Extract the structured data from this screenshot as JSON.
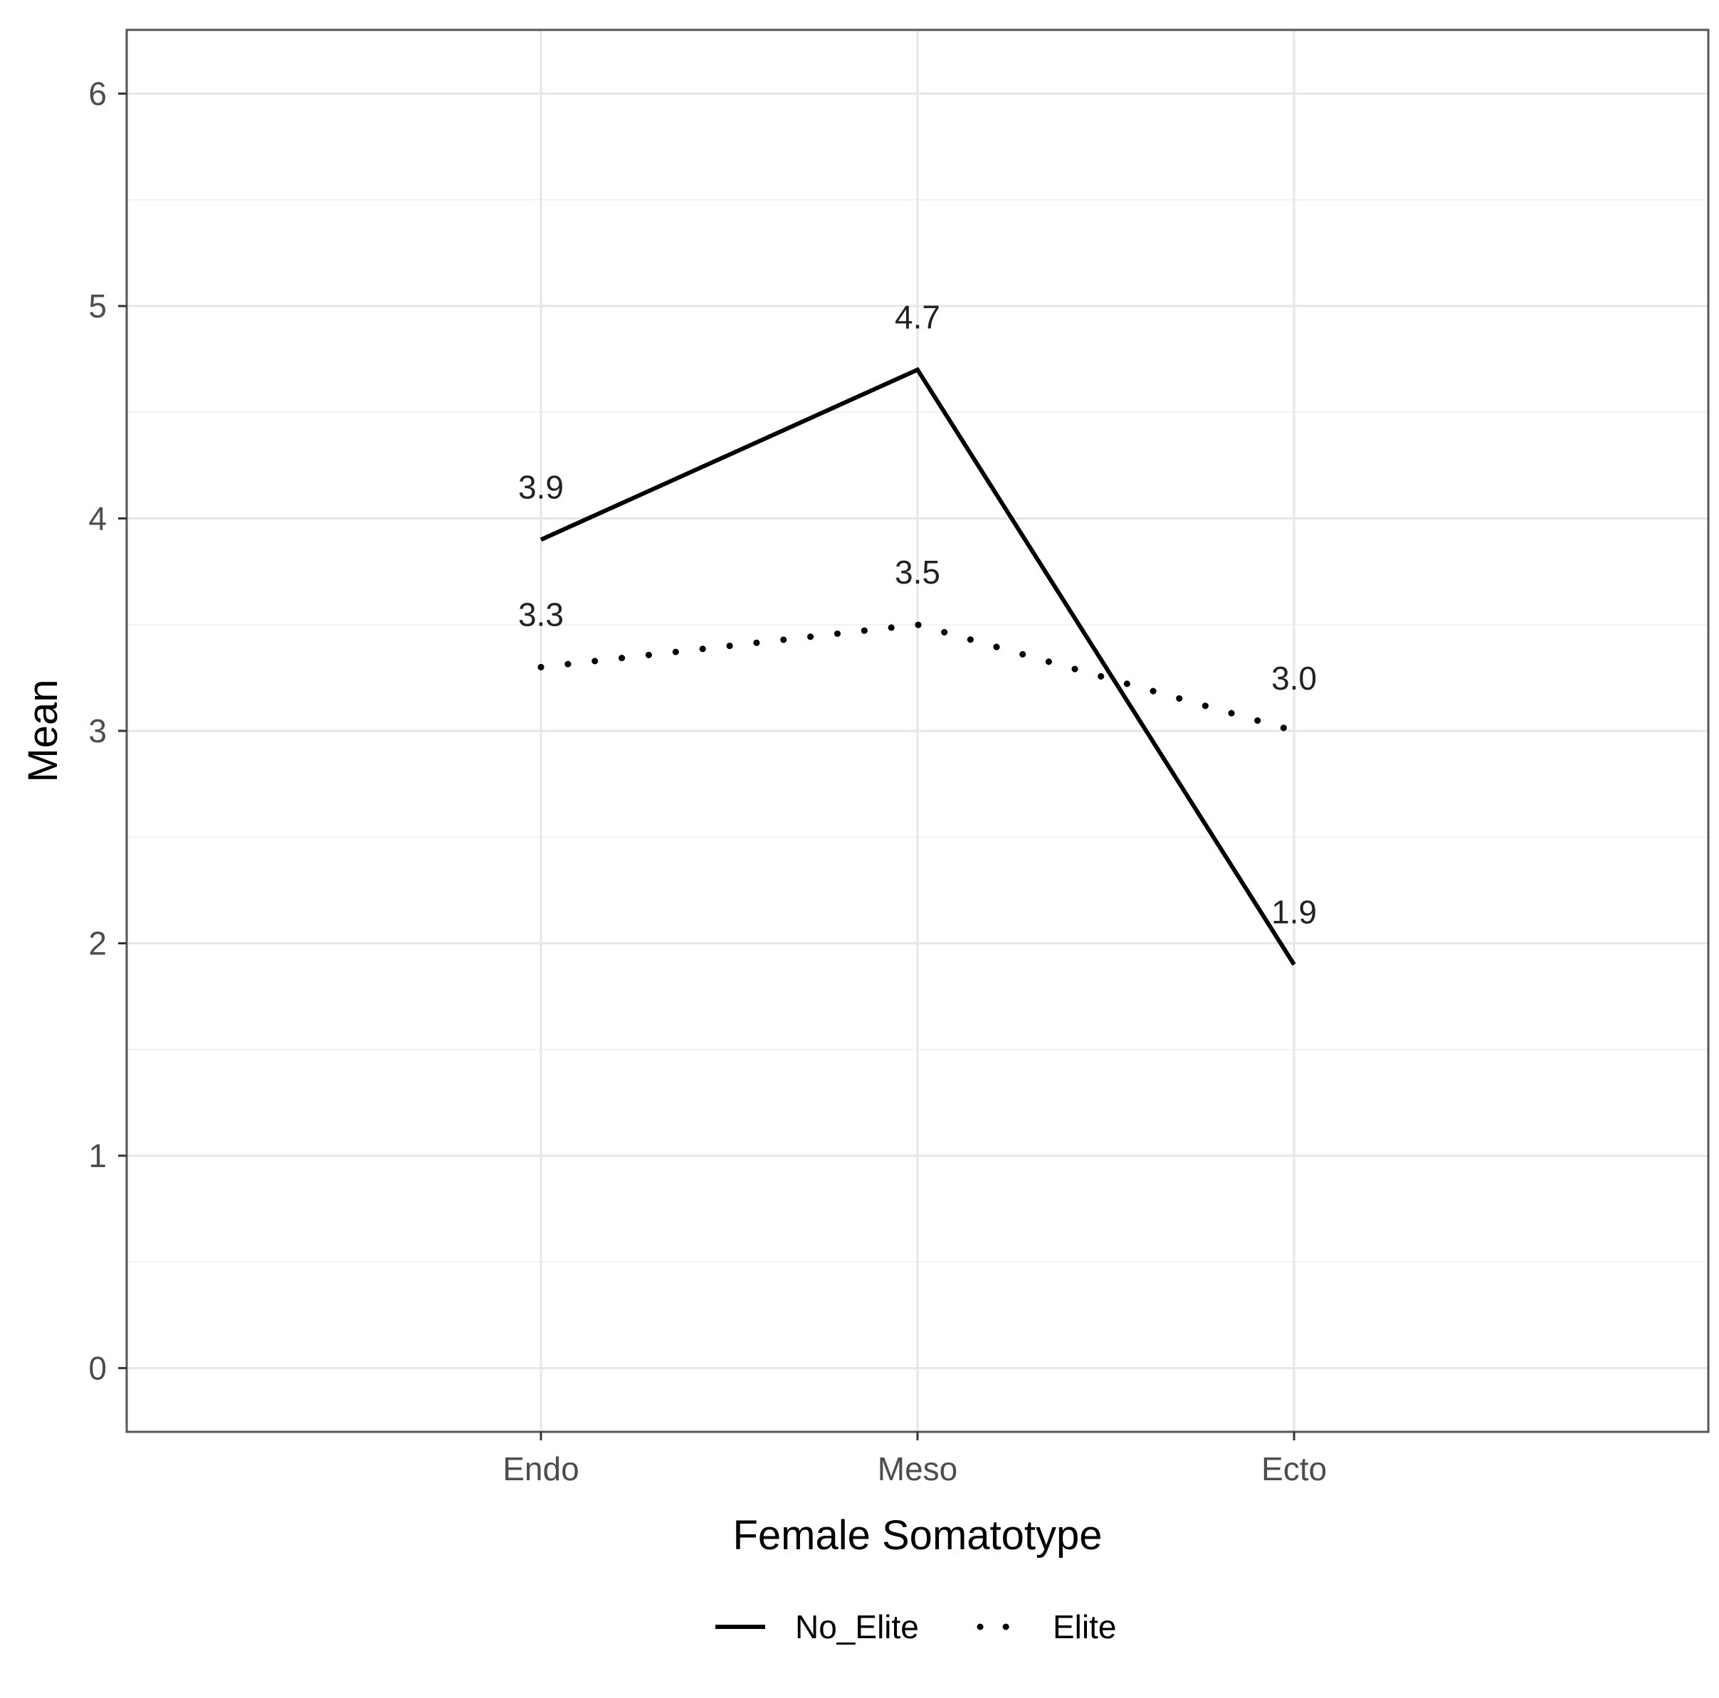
{
  "chart_data": {
    "type": "line",
    "categories": [
      "Endo",
      "Meso",
      "Ecto"
    ],
    "series": [
      {
        "name": "No_Elite",
        "values": [
          3.9,
          4.7,
          1.9
        ],
        "linestyle": "solid",
        "color": "#000000",
        "labels": [
          "3.9",
          "4.7",
          "1.9"
        ]
      },
      {
        "name": "Elite",
        "values": [
          3.3,
          3.5,
          3.0
        ],
        "linestyle": "dotted",
        "color": "#000000",
        "labels": [
          "3.3",
          "3.5",
          "3.0"
        ]
      }
    ],
    "xlabel": "Female Somatotype",
    "ylabel": "Mean",
    "ylim": [
      -0.3,
      6.3
    ],
    "yticks": [
      0,
      1,
      2,
      3,
      4,
      5,
      6
    ],
    "ytick_labels": [
      "0",
      "1",
      "2",
      "3",
      "4",
      "5",
      "6"
    ],
    "grid": true,
    "legend_position": "bottom"
  }
}
